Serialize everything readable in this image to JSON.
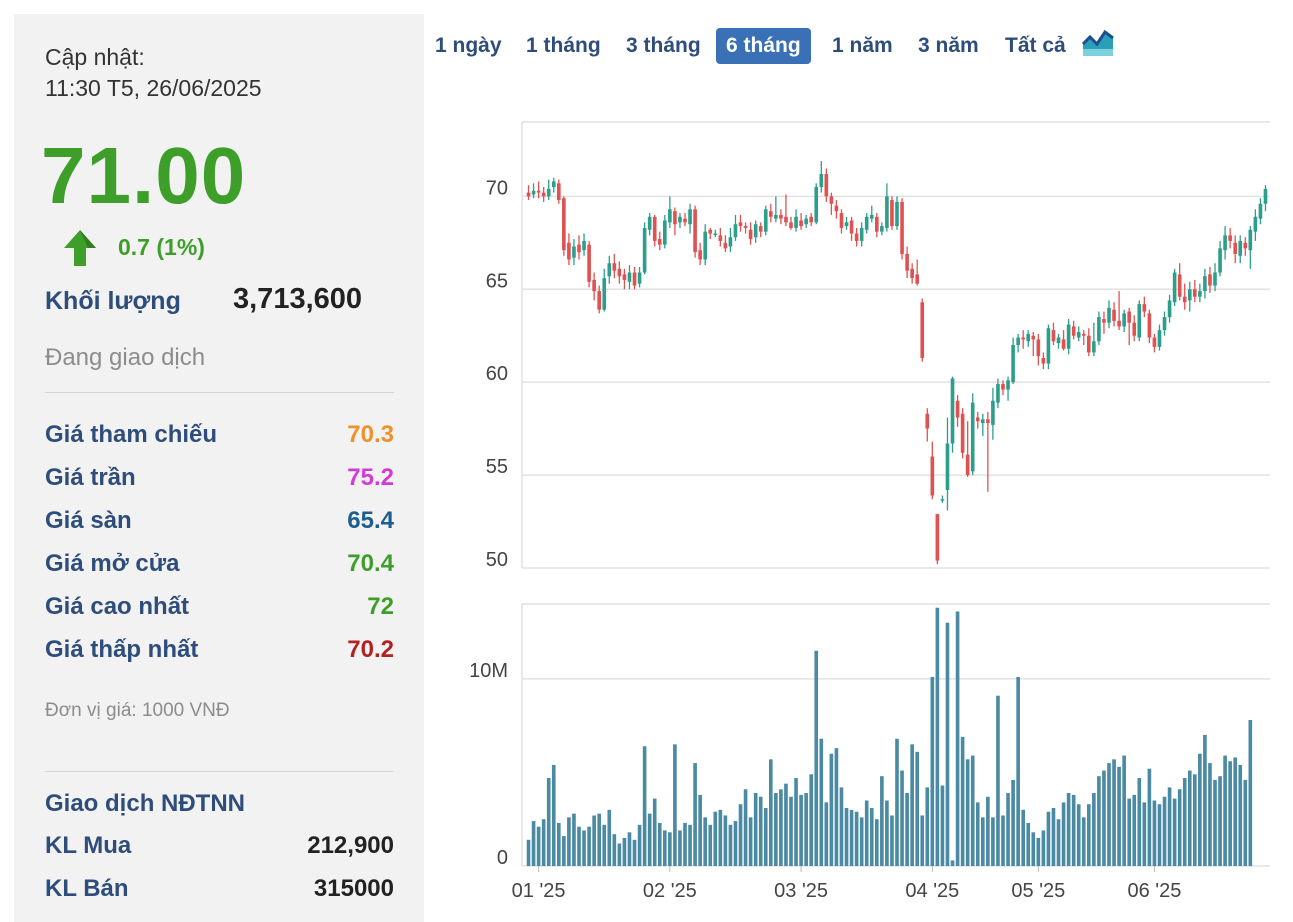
{
  "quote": {
    "update_label": "Cập nhật:",
    "update_time": "11:30 T5, 26/06/2025",
    "price": "71.00",
    "change": "0.7 (1%)",
    "volume_label": "Khối lượng",
    "volume_value": "3,713,600",
    "status": "Đang giao dịch"
  },
  "stats": [
    {
      "label": "Giá tham chiếu",
      "value": "70.3",
      "color": "#f0922c"
    },
    {
      "label": "Giá trần",
      "value": "75.2",
      "color": "#d33bd6"
    },
    {
      "label": "Giá sàn",
      "value": "65.4",
      "color": "#1d5e8f"
    },
    {
      "label": "Giá mở cửa",
      "value": "70.4",
      "color": "#3d9f2a"
    },
    {
      "label": "Giá cao nhất",
      "value": "72",
      "color": "#3d9f2a"
    },
    {
      "label": "Giá thấp nhất",
      "value": "70.2",
      "color": "#b22222"
    }
  ],
  "unit_note": "Đơn vị giá: 1000 VNĐ",
  "foreign": {
    "title": "Giao dịch NĐTNN",
    "buy_label": "KL Mua",
    "buy_value": "212,900",
    "sell_label": "KL Bán",
    "sell_value": "315000"
  },
  "ranges": [
    {
      "label": "1 ngày",
      "active": false
    },
    {
      "label": "1 tháng",
      "active": false
    },
    {
      "label": "3 tháng",
      "active": false
    },
    {
      "label": "6 tháng",
      "active": true
    },
    {
      "label": "1 năm",
      "active": false
    },
    {
      "label": "3 năm",
      "active": false
    },
    {
      "label": "Tất cả",
      "active": false
    }
  ],
  "chart_icon": "area-chart-icon",
  "colors": {
    "up": "#2e9e8c",
    "down": "#e05252",
    "volume": "#4b8aa3",
    "accent": "#3a71b6"
  },
  "chart_data": {
    "type": "candlestick",
    "price_axis": {
      "ticks": [
        50,
        55,
        60,
        65,
        70
      ],
      "ylim": [
        50,
        74
      ]
    },
    "volume_axis": {
      "ticks": [
        "0",
        "10M"
      ],
      "tick_values": [
        0,
        10000000
      ],
      "ylim": [
        0,
        14000000
      ]
    },
    "x_ticks": [
      "01 '25",
      "02 '25",
      "03 '25",
      "04 '25",
      "05 '25",
      "06 '25"
    ],
    "x_tick_index": [
      2,
      28,
      54,
      80,
      101,
      124
    ],
    "grid": true,
    "candles": [
      [
        70.2,
        70.0,
        70.6,
        69.8
      ],
      [
        70.1,
        70.3,
        70.7,
        69.9
      ],
      [
        70.3,
        70.2,
        70.8,
        69.9
      ],
      [
        70.2,
        70.0,
        70.5,
        69.7
      ],
      [
        70.0,
        70.4,
        70.9,
        69.8
      ],
      [
        70.5,
        70.8,
        71.0,
        70.2
      ],
      [
        70.7,
        69.8,
        70.9,
        69.6
      ],
      [
        69.9,
        67.1,
        70.0,
        66.8
      ],
      [
        67.5,
        66.6,
        68.0,
        66.3
      ],
      [
        66.7,
        67.3,
        67.7,
        66.3
      ],
      [
        67.4,
        67.0,
        67.9,
        66.6
      ],
      [
        67.1,
        67.6,
        68.0,
        66.8
      ],
      [
        67.4,
        65.4,
        67.6,
        65.1
      ],
      [
        65.5,
        64.9,
        65.9,
        64.4
      ],
      [
        64.9,
        63.9,
        65.2,
        63.7
      ],
      [
        63.9,
        65.6,
        66.1,
        63.8
      ],
      [
        65.7,
        66.4,
        66.8,
        65.3
      ],
      [
        66.4,
        66.0,
        66.9,
        65.6
      ],
      [
        66.1,
        65.7,
        66.5,
        65.3
      ],
      [
        65.8,
        65.5,
        66.1,
        65.0
      ],
      [
        65.4,
        65.9,
        66.3,
        65.0
      ],
      [
        65.9,
        65.2,
        66.2,
        65.0
      ],
      [
        65.3,
        65.9,
        66.2,
        65.1
      ],
      [
        65.9,
        68.3,
        68.6,
        65.8
      ],
      [
        68.2,
        68.9,
        69.1,
        67.9
      ],
      [
        68.9,
        67.6,
        69.0,
        67.3
      ],
      [
        67.7,
        67.4,
        68.1,
        67.1
      ],
      [
        67.4,
        68.7,
        69.0,
        67.2
      ],
      [
        68.6,
        69.3,
        70.0,
        68.3
      ],
      [
        69.2,
        68.5,
        69.4,
        67.9
      ],
      [
        68.6,
        68.9,
        69.1,
        68.3
      ],
      [
        68.8,
        68.6,
        69.1,
        68.4
      ],
      [
        68.5,
        69.3,
        69.6,
        68.0
      ],
      [
        69.3,
        67.0,
        69.5,
        66.7
      ],
      [
        67.1,
        66.6,
        67.5,
        66.3
      ],
      [
        66.6,
        68.1,
        68.5,
        66.3
      ],
      [
        68.2,
        68.0,
        68.3,
        67.7
      ],
      [
        68.0,
        68.0,
        68.2,
        67.8
      ],
      [
        67.9,
        67.6,
        68.3,
        67.3
      ],
      [
        67.5,
        67.2,
        67.9,
        67.0
      ],
      [
        67.3,
        67.8,
        68.3,
        67.0
      ],
      [
        67.8,
        68.5,
        69.0,
        67.6
      ],
      [
        68.6,
        68.4,
        69.0,
        68.1
      ],
      [
        68.4,
        68.3,
        68.6,
        68.0
      ],
      [
        68.2,
        67.7,
        68.6,
        67.4
      ],
      [
        67.8,
        68.5,
        68.7,
        67.5
      ],
      [
        68.4,
        68.1,
        68.6,
        67.8
      ],
      [
        68.1,
        69.3,
        69.5,
        67.9
      ],
      [
        69.2,
        68.9,
        69.6,
        68.6
      ],
      [
        68.8,
        69.0,
        70.0,
        68.6
      ],
      [
        69.0,
        68.8,
        69.3,
        68.5
      ],
      [
        68.9,
        68.6,
        70.1,
        68.4
      ],
      [
        68.6,
        68.3,
        68.9,
        68.2
      ],
      [
        68.3,
        68.9,
        69.3,
        68.1
      ],
      [
        68.7,
        68.4,
        69.1,
        68.2
      ],
      [
        68.5,
        68.8,
        69.0,
        68.3
      ],
      [
        68.9,
        68.6,
        69.1,
        68.4
      ],
      [
        68.6,
        70.5,
        70.7,
        68.5
      ],
      [
        70.5,
        71.2,
        71.9,
        70.2
      ],
      [
        71.2,
        70.0,
        71.5,
        69.7
      ],
      [
        70.0,
        69.6,
        70.2,
        69.0
      ],
      [
        69.5,
        69.2,
        69.8,
        68.8
      ],
      [
        69.1,
        68.3,
        69.3,
        68.0
      ],
      [
        68.4,
        68.6,
        68.9,
        68.2
      ],
      [
        68.7,
        68.0,
        68.9,
        67.6
      ],
      [
        68.0,
        67.6,
        68.3,
        67.3
      ],
      [
        67.6,
        68.3,
        68.6,
        67.3
      ],
      [
        68.2,
        68.9,
        69.1,
        68.0
      ],
      [
        68.8,
        69.0,
        69.5,
        68.6
      ],
      [
        68.9,
        68.1,
        69.1,
        67.8
      ],
      [
        68.1,
        68.4,
        68.6,
        67.9
      ],
      [
        68.3,
        70.0,
        70.7,
        68.1
      ],
      [
        69.8,
        68.4,
        70.0,
        68.2
      ],
      [
        68.4,
        69.7,
        70.0,
        68.2
      ],
      [
        69.7,
        66.9,
        69.9,
        66.6
      ],
      [
        66.9,
        66.0,
        67.3,
        65.6
      ],
      [
        66.1,
        65.6,
        66.4,
        65.3
      ],
      [
        65.8,
        65.3,
        66.6,
        65.2
      ],
      [
        64.3,
        61.3,
        64.5,
        61.1
      ],
      [
        58.3,
        57.5,
        58.6,
        56.8
      ],
      [
        56.0,
        53.9,
        56.8,
        53.7
      ],
      [
        52.9,
        50.4,
        52.9,
        50.2
      ],
      [
        53.7,
        53.7,
        53.9,
        53.5
      ],
      [
        54.2,
        56.7,
        58.1,
        53.1
      ],
      [
        56.7,
        60.2,
        60.3,
        56.2
      ],
      [
        59.0,
        58.1,
        59.3,
        57.6
      ],
      [
        58.3,
        56.2,
        58.6,
        55.9
      ],
      [
        56.1,
        55.0,
        57.9,
        54.9
      ],
      [
        55.2,
        58.9,
        59.4,
        55.0
      ],
      [
        58.1,
        57.9,
        58.4,
        57.5
      ],
      [
        57.8,
        58.0,
        58.3,
        57.1
      ],
      [
        58.0,
        57.8,
        58.4,
        54.1
      ],
      [
        57.7,
        59.0,
        59.7,
        56.9
      ],
      [
        58.9,
        59.9,
        60.2,
        58.6
      ],
      [
        59.9,
        59.6,
        60.1,
        59.3
      ],
      [
        59.6,
        60.1,
        60.3,
        59.0
      ],
      [
        60.0,
        62.0,
        62.4,
        59.9
      ],
      [
        62.0,
        62.4,
        62.6,
        61.6
      ],
      [
        62.4,
        62.3,
        62.8,
        61.8
      ],
      [
        62.2,
        62.6,
        62.8,
        61.9
      ],
      [
        62.5,
        62.3,
        62.7,
        61.4
      ],
      [
        62.3,
        61.4,
        62.6,
        60.9
      ],
      [
        61.3,
        61.0,
        61.6,
        60.7
      ],
      [
        61.0,
        62.9,
        63.1,
        60.7
      ],
      [
        62.8,
        62.2,
        63.2,
        62.0
      ],
      [
        62.1,
        62.4,
        62.6,
        61.8
      ],
      [
        62.3,
        61.8,
        62.8,
        61.7
      ],
      [
        61.8,
        63.1,
        63.4,
        61.5
      ],
      [
        63.0,
        62.5,
        63.3,
        62.3
      ],
      [
        62.4,
        62.7,
        63.0,
        62.2
      ],
      [
        62.6,
        62.5,
        62.8,
        62.0
      ],
      [
        62.5,
        61.6,
        62.9,
        61.4
      ],
      [
        61.6,
        62.2,
        63.2,
        61.4
      ],
      [
        62.2,
        63.5,
        63.8,
        62.0
      ],
      [
        63.4,
        63.2,
        63.8,
        62.6
      ],
      [
        63.2,
        64.0,
        64.4,
        62.9
      ],
      [
        63.9,
        63.3,
        64.3,
        63.0
      ],
      [
        63.3,
        63.0,
        64.9,
        62.8
      ],
      [
        63.0,
        63.7,
        63.9,
        62.7
      ],
      [
        63.8,
        63.2,
        64.0,
        62.0
      ],
      [
        63.2,
        62.5,
        63.6,
        62.2
      ],
      [
        62.4,
        64.2,
        64.4,
        62.2
      ],
      [
        64.2,
        63.8,
        64.6,
        63.5
      ],
      [
        63.7,
        62.4,
        63.9,
        62.1
      ],
      [
        62.4,
        61.9,
        62.6,
        61.6
      ],
      [
        61.9,
        62.8,
        63.1,
        61.7
      ],
      [
        62.8,
        63.5,
        63.8,
        62.5
      ],
      [
        63.5,
        64.4,
        64.7,
        63.2
      ],
      [
        64.3,
        65.9,
        66.1,
        64.1
      ],
      [
        65.8,
        64.6,
        66.4,
        64.4
      ],
      [
        64.6,
        64.3,
        65.3,
        63.9
      ],
      [
        64.4,
        65.0,
        65.4,
        63.8
      ],
      [
        65.0,
        64.6,
        65.5,
        64.3
      ],
      [
        64.6,
        64.9,
        65.3,
        64.3
      ],
      [
        64.9,
        65.7,
        66.1,
        64.5
      ],
      [
        65.8,
        65.2,
        66.2,
        64.8
      ],
      [
        65.2,
        65.9,
        66.4,
        64.9
      ],
      [
        65.9,
        67.2,
        67.6,
        65.7
      ],
      [
        67.1,
        67.9,
        68.4,
        66.6
      ],
      [
        67.9,
        67.6,
        68.3,
        67.2
      ],
      [
        67.5,
        66.9,
        67.9,
        66.4
      ],
      [
        66.8,
        67.6,
        67.9,
        66.4
      ],
      [
        67.5,
        67.2,
        67.8,
        66.8
      ],
      [
        67.1,
        68.2,
        68.4,
        66.1
      ],
      [
        68.1,
        68.9,
        69.3,
        67.6
      ],
      [
        68.8,
        69.6,
        69.9,
        68.5
      ],
      [
        69.6,
        70.4,
        70.6,
        69.2
      ]
    ],
    "volume": [
      1.4,
      2.4,
      2.1,
      2.5,
      4.7,
      5.4,
      2.3,
      1.6,
      2.6,
      2.8,
      2.1,
      1.9,
      2.1,
      2.7,
      2.8,
      2.2,
      3.0,
      1.7,
      1.2,
      1.5,
      1.8,
      1.4,
      2.2,
      6.4,
      2.8,
      3.6,
      2.3,
      1.9,
      1.8,
      6.5,
      1.9,
      2.3,
      2.2,
      5.5,
      3.8,
      2.6,
      2.2,
      2.9,
      3.0,
      2.7,
      2.2,
      2.4,
      3.3,
      4.1,
      2.6,
      3.9,
      3.7,
      3.1,
      5.7,
      3.9,
      4.1,
      4.4,
      3.7,
      4.7,
      3.8,
      3.9,
      4.9,
      11.5,
      6.8,
      3.4,
      6.0,
      6.3,
      4.2,
      3.1,
      3.0,
      2.9,
      2.6,
      3.5,
      3.1,
      2.5,
      4.8,
      3.5,
      2.7,
      6.8,
      5.1,
      3.9,
      6.5,
      6.1,
      2.7,
      4.2,
      10.1,
      13.8,
      4.3,
      13.0,
      0.3,
      13.6,
      6.9,
      5.7,
      5.9,
      3.4,
      2.6,
      3.7,
      2.6,
      9.1,
      2.7,
      3.9,
      4.6,
      10.1,
      3.0,
      2.3,
      1.8,
      1.5,
      1.9,
      2.9,
      3.1,
      2.5,
      3.4,
      3.9,
      3.8,
      3.3,
      2.6,
      3.3,
      3.9,
      4.8,
      5.1,
      5.5,
      5.7,
      5.3,
      5.9,
      3.6,
      3.8,
      4.7,
      3.4,
      5.2,
      3.5,
      3.3,
      3.7,
      4.2,
      3.6,
      4.1,
      4.7,
      5.1,
      4.9,
      6.0,
      7.0,
      5.5,
      4.6,
      4.8,
      5.9,
      5.6,
      5.8,
      5.4,
      4.6,
      7.8
    ],
    "volume_unit": "M"
  }
}
